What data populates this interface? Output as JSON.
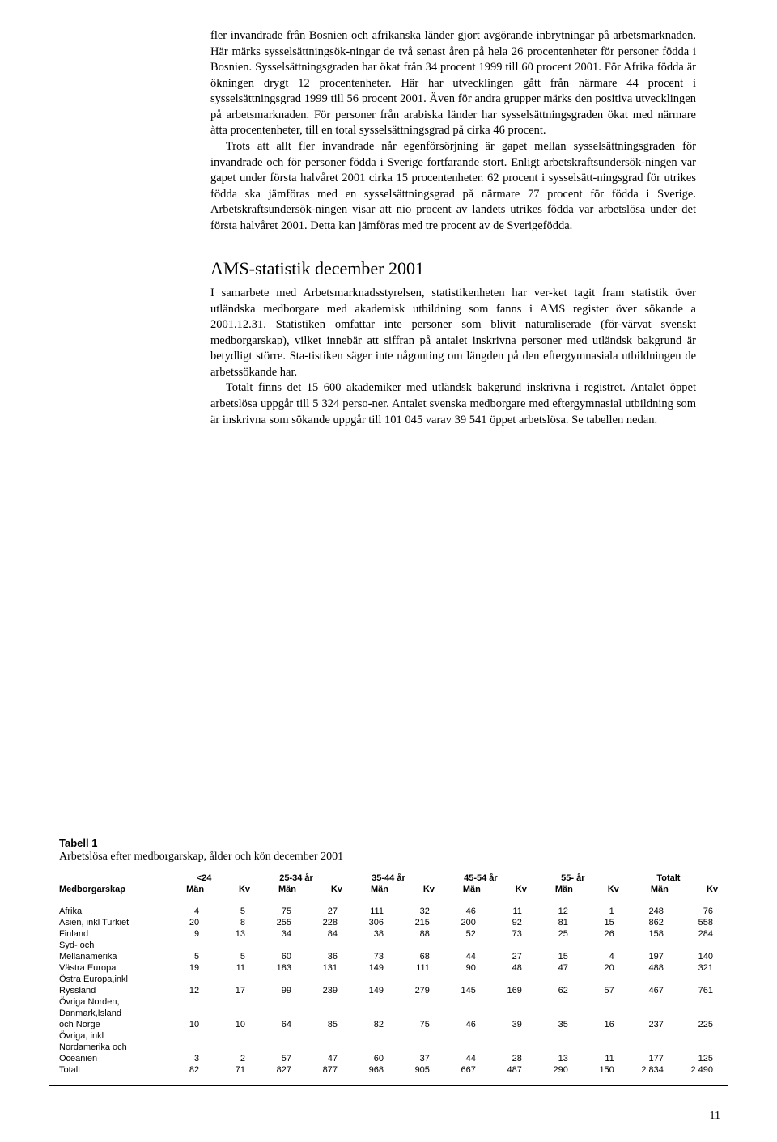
{
  "body": {
    "p1": "fler invandrade från Bosnien och afrikanska länder gjort avgörande inbrytningar på arbetsmarknaden. Här märks sysselsättningsök-ningar de två senast åren på hela 26 procentenheter för personer födda i Bosnien. Sysselsättningsgraden har ökat från 34 procent 1999 till 60 procent 2001. För Afrika födda är ökningen drygt 12 procentenheter. Här har utvecklingen gått från närmare 44 procent i sysselsättningsgrad 1999 till 56 procent 2001. Även för andra grupper märks den positiva utvecklingen på arbetsmarknaden. För personer från arabiska länder har sysselsättningsgraden ökat med närmare åtta procentenheter, till en total sysselsättningsgrad på cirka 46 procent.",
    "p2": "Trots att allt fler invandrade når egenförsörjning är gapet mellan sysselsättningsgraden för invandrade och för personer födda i Sverige fortfarande stort. Enligt arbetskraftsundersök-ningen var gapet under första halvåret 2001 cirka 15 procentenheter. 62 procent i sysselsätt-ningsgrad för utrikes födda ska jämföras med en sysselsättningsgrad på närmare 77 procent för födda i Sverige. Arbetskraftsundersök-ningen visar att nio procent av landets utrikes födda var arbetslösa under det första halvåret 2001. Detta kan jämföras med tre procent av de Sverigefödda.",
    "heading": "AMS-statistik december 2001",
    "p3": "I samarbete med Arbetsmarknadsstyrelsen, statistikenheten har ver-ket tagit fram statistik över utländska medborgare med akademisk utbildning som fanns i AMS register över sökande a 2001.12.31. Statistiken omfattar inte personer som blivit naturaliserade (för-värvat svenskt medborgarskap), vilket innebär att siffran på antalet inskrivna personer med utländsk bakgrund är betydligt större. Sta-tistiken säger inte någonting om längden på den eftergymnasiala utbildningen de arbetssökande har.",
    "p4": "Totalt finns det 15 600 akademiker med utländsk bakgrund inskrivna i registret. Antalet öppet arbetslösa uppgår till 5 324 perso-ner. Antalet svenska medborgare med eftergymnasial utbildning som är inskrivna som sökande uppgår till 101 045 varav 39 541 öppet arbetslösa. Se tabellen nedan."
  },
  "table": {
    "title": "Tabell 1",
    "subtitle": "Arbetslösa efter medborgarskap, ålder och kön december 2001",
    "corner": "Medborgarskap",
    "groups": [
      "<24",
      "25-34 år",
      "35-44 år",
      "45-54 år",
      "55- år",
      "Totalt"
    ],
    "subcols": [
      "Män",
      "Kv"
    ],
    "rows": [
      {
        "label": "Afrika",
        "cells": [
          "4",
          "5",
          "75",
          "27",
          "111",
          "32",
          "46",
          "11",
          "12",
          "1",
          "248",
          "76"
        ]
      },
      {
        "label": "Asien, inkl Turkiet",
        "cells": [
          "20",
          "8",
          "255",
          "228",
          "306",
          "215",
          "200",
          "92",
          "81",
          "15",
          "862",
          "558"
        ]
      },
      {
        "label": "Finland",
        "cells": [
          "9",
          "13",
          "34",
          "84",
          "38",
          "88",
          "52",
          "73",
          "25",
          "26",
          "158",
          "284"
        ]
      },
      {
        "label": "Syd- och",
        "cells": [
          "",
          "",
          "",
          "",
          "",
          "",
          "",
          "",
          "",
          "",
          "",
          ""
        ]
      },
      {
        "label": "Mellanamerika",
        "cells": [
          "5",
          "5",
          "60",
          "36",
          "73",
          "68",
          "44",
          "27",
          "15",
          "4",
          "197",
          "140"
        ]
      },
      {
        "label": "Västra Europa",
        "cells": [
          "19",
          "11",
          "183",
          "131",
          "149",
          "111",
          "90",
          "48",
          "47",
          "20",
          "488",
          "321"
        ]
      },
      {
        "label": "Östra Europa,inkl",
        "cells": [
          "",
          "",
          "",
          "",
          "",
          "",
          "",
          "",
          "",
          "",
          "",
          ""
        ]
      },
      {
        "label": "Ryssland",
        "cells": [
          "12",
          "17",
          "99",
          "239",
          "149",
          "279",
          "145",
          "169",
          "62",
          "57",
          "467",
          "761"
        ]
      },
      {
        "label": "Övriga Norden,",
        "cells": [
          "",
          "",
          "",
          "",
          "",
          "",
          "",
          "",
          "",
          "",
          "",
          ""
        ]
      },
      {
        "label": "Danmark,Island",
        "cells": [
          "",
          "",
          "",
          "",
          "",
          "",
          "",
          "",
          "",
          "",
          "",
          ""
        ]
      },
      {
        "label": "och Norge",
        "cells": [
          "10",
          "10",
          "64",
          "85",
          "82",
          "75",
          "46",
          "39",
          "35",
          "16",
          "237",
          "225"
        ]
      },
      {
        "label": "Övriga, inkl",
        "cells": [
          "",
          "",
          "",
          "",
          "",
          "",
          "",
          "",
          "",
          "",
          "",
          ""
        ]
      },
      {
        "label": "Nordamerika och",
        "cells": [
          "",
          "",
          "",
          "",
          "",
          "",
          "",
          "",
          "",
          "",
          "",
          ""
        ]
      },
      {
        "label": "Oceanien",
        "cells": [
          "3",
          "2",
          "57",
          "47",
          "60",
          "37",
          "44",
          "28",
          "13",
          "11",
          "177",
          "125"
        ]
      },
      {
        "label": "Totalt",
        "cells": [
          "82",
          "71",
          "827",
          "877",
          "968",
          "905",
          "667",
          "487",
          "290",
          "150",
          "2 834",
          "2 490"
        ]
      }
    ]
  },
  "page_number": "11"
}
